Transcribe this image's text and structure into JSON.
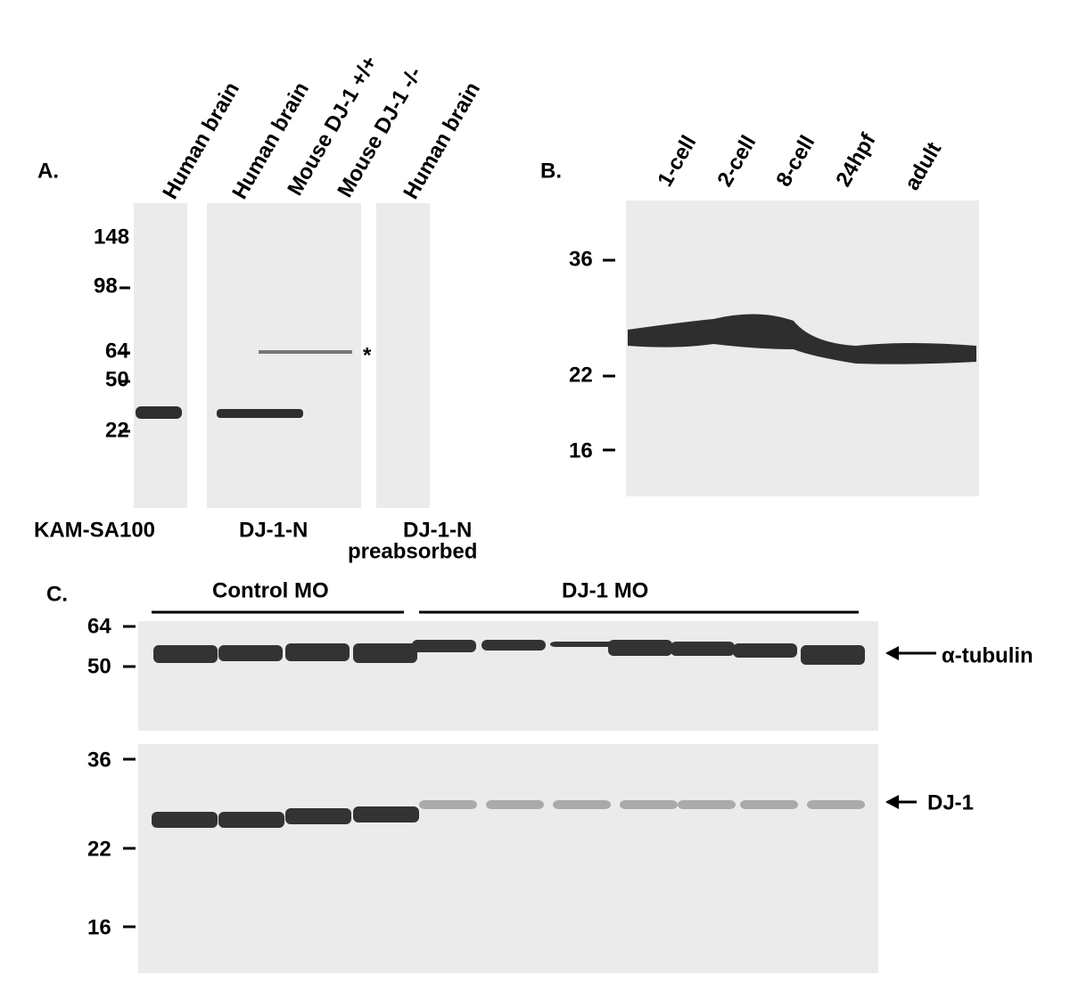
{
  "panel_a": {
    "label": "A.",
    "lanes": [
      "Human brain",
      "Human brain",
      "Mouse DJ-1 +/+",
      "Mouse DJ-1 -/-",
      "Human brain"
    ],
    "markers": [
      "148",
      "98",
      "64",
      "50",
      "22"
    ],
    "asterisk": "*",
    "antibodies": [
      "KAM-SA100",
      "DJ-1-N",
      "DJ-1-N",
      "preabsorbed"
    ]
  },
  "panel_b": {
    "label": "B.",
    "lanes": [
      "1-cell",
      "2-cell",
      "8-cell",
      "24hpf",
      "adult"
    ],
    "markers": [
      "36",
      "22",
      "16"
    ]
  },
  "panel_c": {
    "label": "C.",
    "groups": [
      "Control MO",
      "DJ-1 MO"
    ],
    "top_markers": [
      "64",
      "50"
    ],
    "bottom_markers": [
      "36",
      "22",
      "16"
    ],
    "targets": [
      "α-tubulin",
      "DJ-1"
    ]
  }
}
